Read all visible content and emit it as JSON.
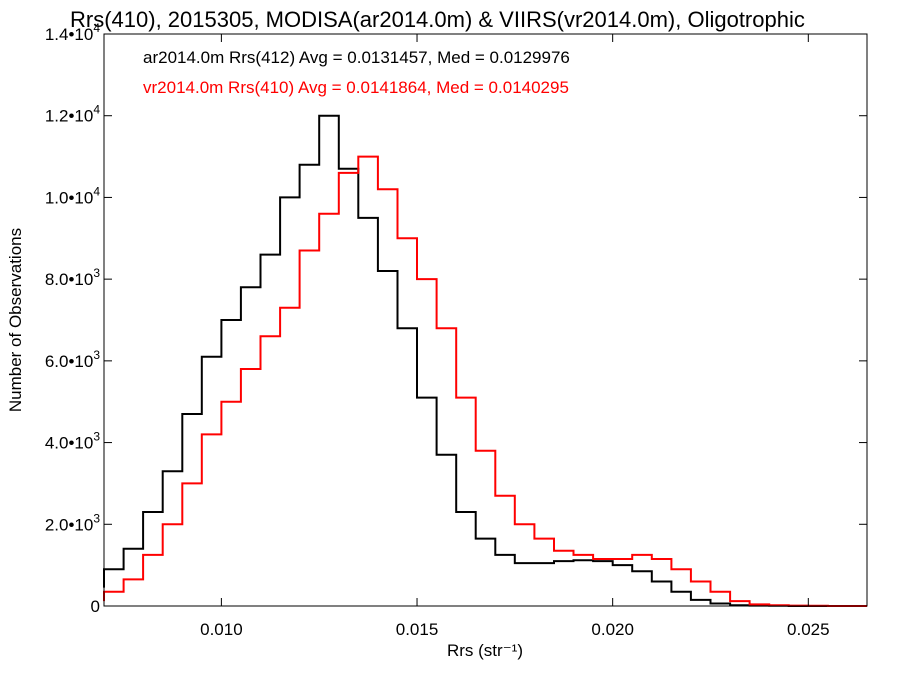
{
  "chart_data": {
    "type": "line",
    "title": "Rrs(410), 2015305, MODISA(ar2014.0m) & VIIRS(vr2014.0m), Oligotrophic",
    "xlabel": "Rrs (str⁻¹)",
    "ylabel": "Number of Observations",
    "xlim": [
      0.007,
      0.0265
    ],
    "ylim": [
      0,
      14000
    ],
    "xticks": [
      0.01,
      0.015,
      0.02,
      0.025
    ],
    "xtick_labels": [
      "0.010",
      "0.015",
      "0.020",
      "0.025"
    ],
    "yticks": [
      {
        "value": 0,
        "mantissa": "0",
        "exp": ""
      },
      {
        "value": 2000,
        "mantissa": "2.0•10",
        "exp": "3"
      },
      {
        "value": 4000,
        "mantissa": "4.0•10",
        "exp": "3"
      },
      {
        "value": 6000,
        "mantissa": "6.0•10",
        "exp": "3"
      },
      {
        "value": 8000,
        "mantissa": "8.0•10",
        "exp": "3"
      },
      {
        "value": 10000,
        "mantissa": "1.0•10",
        "exp": "4"
      },
      {
        "value": 12000,
        "mantissa": "1.2•10",
        "exp": "4"
      },
      {
        "value": 14000,
        "mantissa": "1.4•10",
        "exp": "4"
      }
    ],
    "grid": false,
    "legend_position": "top-left",
    "series": [
      {
        "name": "ar2014.0m Rrs(412) Avg = 0.0131457, Med = 0.0129976",
        "color": "#000000",
        "x": [
          0.007,
          0.0075,
          0.008,
          0.0085,
          0.009,
          0.0095,
          0.01,
          0.0105,
          0.011,
          0.0115,
          0.012,
          0.0125,
          0.013,
          0.0135,
          0.014,
          0.0145,
          0.015,
          0.0155,
          0.016,
          0.0165,
          0.017,
          0.0175,
          0.018,
          0.0185,
          0.019,
          0.0195,
          0.02,
          0.0205,
          0.021,
          0.0215,
          0.022,
          0.0225,
          0.023,
          0.0235,
          0.024,
          0.0245,
          0.025,
          0.0255,
          0.026,
          0.0265
        ],
        "y": [
          450,
          900,
          1400,
          2300,
          3300,
          4700,
          6100,
          7000,
          7800,
          8600,
          10000,
          10800,
          12000,
          10700,
          9500,
          8200,
          6800,
          5100,
          3700,
          2300,
          1650,
          1250,
          1050,
          1050,
          1100,
          1120,
          1100,
          1000,
          850,
          600,
          350,
          150,
          60,
          20,
          10,
          5,
          0,
          0,
          0,
          0
        ]
      },
      {
        "name": "vr2014.0m Rrs(410) Avg = 0.0141864, Med = 0.0140295",
        "color": "#ff0000",
        "x": [
          0.007,
          0.0075,
          0.008,
          0.0085,
          0.009,
          0.0095,
          0.01,
          0.0105,
          0.011,
          0.0115,
          0.012,
          0.0125,
          0.013,
          0.0135,
          0.014,
          0.0145,
          0.015,
          0.0155,
          0.016,
          0.0165,
          0.017,
          0.0175,
          0.018,
          0.0185,
          0.019,
          0.0195,
          0.02,
          0.0205,
          0.021,
          0.0215,
          0.022,
          0.0225,
          0.023,
          0.0235,
          0.024,
          0.0245,
          0.025,
          0.0255,
          0.026,
          0.0265
        ],
        "y": [
          120,
          350,
          650,
          1250,
          2000,
          3000,
          4200,
          5000,
          5800,
          6600,
          7300,
          8700,
          9600,
          10600,
          11000,
          10200,
          9000,
          8000,
          6800,
          5100,
          3800,
          2700,
          2000,
          1650,
          1350,
          1250,
          1150,
          1150,
          1250,
          1150,
          900,
          600,
          350,
          120,
          40,
          20,
          10,
          5,
          0,
          0
        ]
      }
    ]
  }
}
